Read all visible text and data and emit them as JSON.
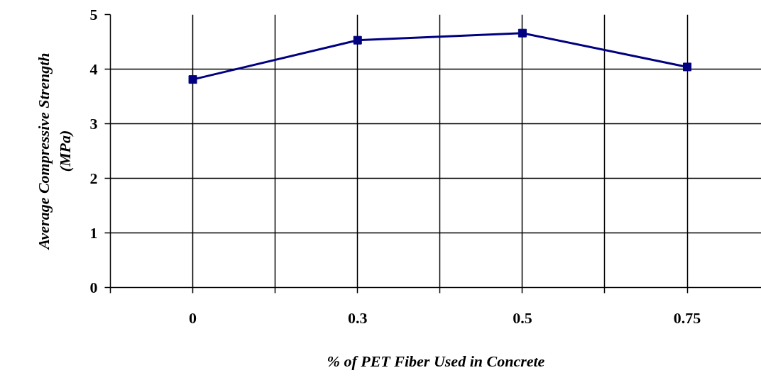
{
  "chart_data": {
    "type": "line",
    "xlabel": "% of PET Fiber Used in Concrete",
    "ylabel": "Average Compressive Strength (MPa)",
    "categories": [
      "0",
      "0.3",
      "0.5",
      "0.75"
    ],
    "series": [
      {
        "color": "#000080",
        "values": [
          3.81,
          4.53,
          4.66,
          4.04
        ]
      }
    ],
    "ylim": [
      0,
      5
    ],
    "yticks": [
      0,
      1,
      2,
      3,
      4,
      5
    ],
    "grid": true,
    "marker": "square",
    "line_style": "solid"
  }
}
